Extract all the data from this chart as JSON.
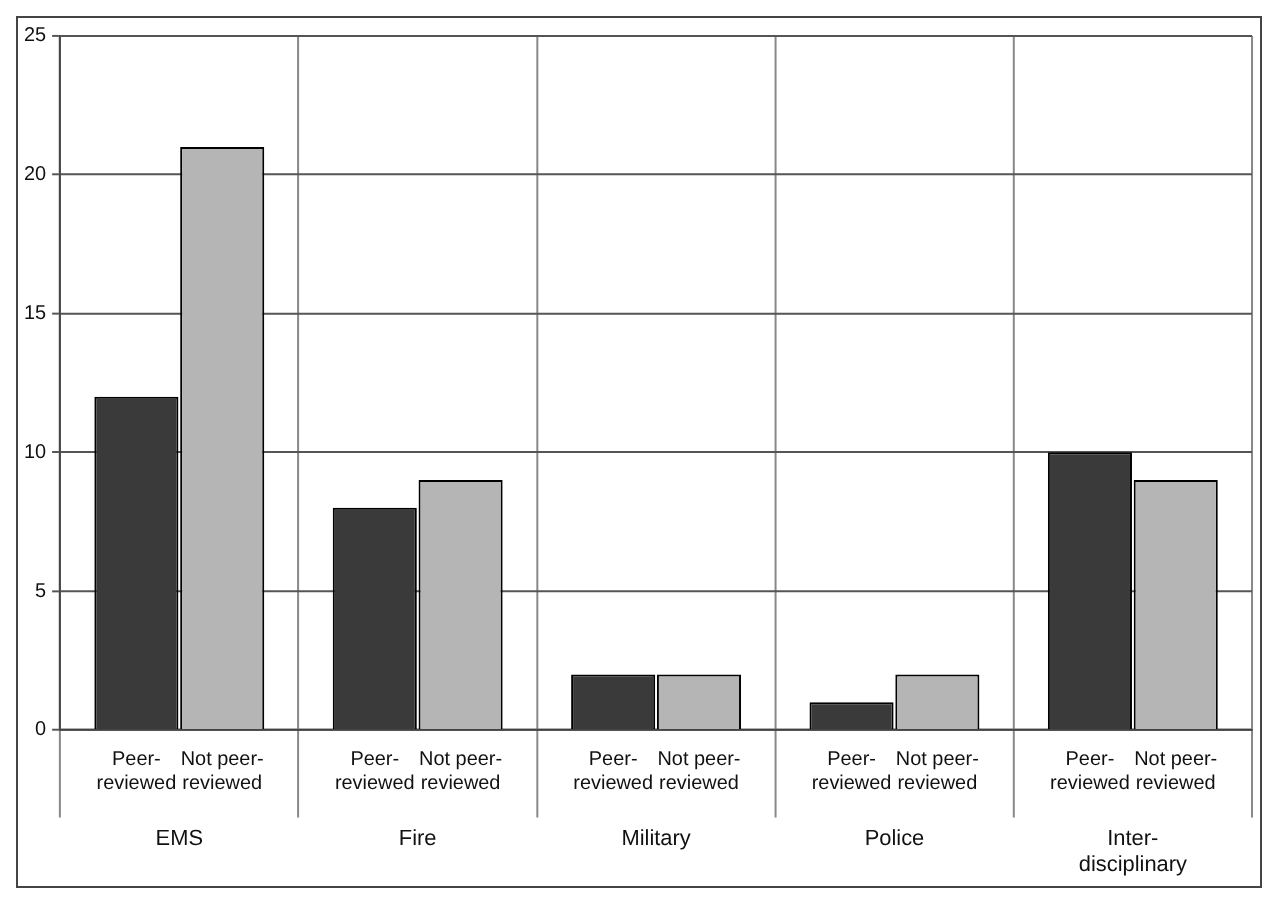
{
  "chart_data": {
    "type": "bar",
    "categories": [
      "EMS",
      "Fire",
      "Military",
      "Police",
      "Inter-disciplinary"
    ],
    "series": [
      {
        "name": "Peer-reviewed",
        "color": "#3a3a3a",
        "values": [
          12,
          8,
          2,
          1,
          10
        ]
      },
      {
        "name": "Not peer-reviewed",
        "color": "#b5b5b5",
        "values": [
          21,
          9,
          2,
          2,
          9
        ]
      }
    ],
    "ylim": [
      0,
      25
    ],
    "yticks": [
      0,
      5,
      10,
      15,
      20,
      25
    ],
    "grid": true,
    "legend": false
  }
}
